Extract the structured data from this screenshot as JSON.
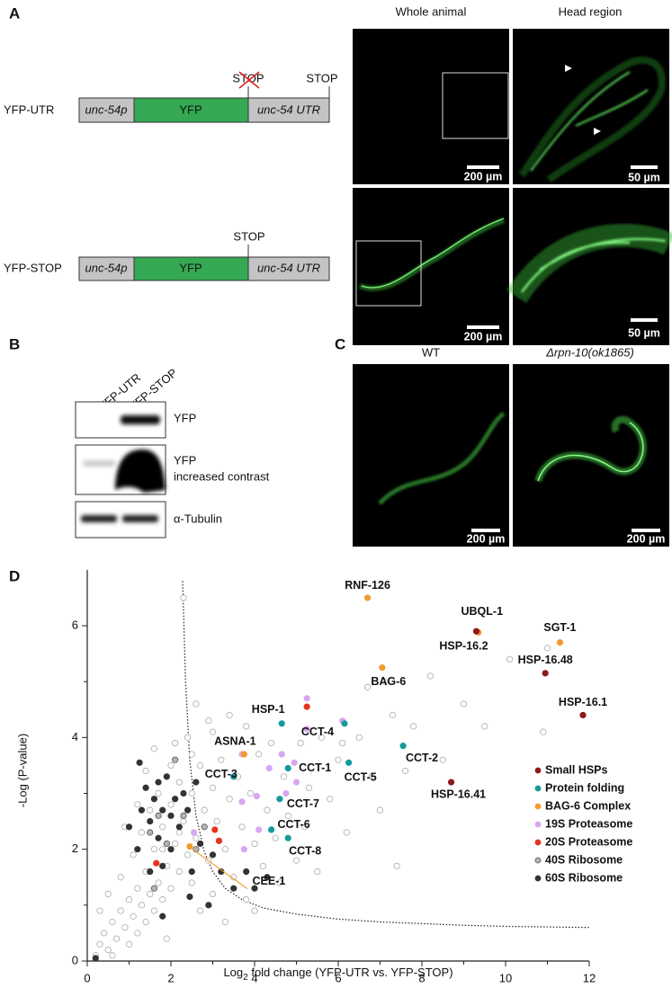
{
  "panel_labels": [
    "A",
    "B",
    "C",
    "D"
  ],
  "panel_a": {
    "column_headers": [
      "Whole animal",
      "Head region"
    ],
    "constructs": [
      {
        "name": "YFP-UTR",
        "segments": [
          "unc-54p",
          "YFP",
          "unc-54 UTR"
        ],
        "stops": [
          "STOP",
          "STOP"
        ]
      },
      {
        "name": "YFP-STOP",
        "segments": [
          "unc-54p",
          "YFP",
          "unc-54 UTR"
        ],
        "stops": [
          "STOP"
        ]
      }
    ],
    "scale_bars": [
      "200 µm",
      "50 µm",
      "200 µm",
      "50 µm"
    ]
  },
  "panel_b": {
    "lanes": [
      "YFP-UTR",
      "YFP-STOP"
    ],
    "blots": [
      [
        "YFP"
      ],
      [
        "YFP",
        "increased contrast"
      ],
      [
        "α-Tubulin"
      ]
    ]
  },
  "panel_c": {
    "headers": [
      "WT",
      "Δrpn-10(ok1865)"
    ],
    "scale_bars": [
      "200 µm",
      "200 µm"
    ]
  },
  "chart_data": {
    "type": "scatter",
    "xlabel_parts": [
      "Log",
      "2",
      " fold change (YFP-UTR vs. YFP-STOP)"
    ],
    "ylabel": "-Log (P-value)",
    "xlim": [
      0,
      12
    ],
    "ylim": [
      0,
      7
    ],
    "xticks": [
      0,
      2,
      4,
      6,
      8,
      10,
      12
    ],
    "yticks": [
      0,
      2,
      4,
      6
    ],
    "xminor": [
      1,
      3,
      5,
      7,
      9,
      11
    ],
    "yminor": [
      1,
      3,
      5
    ],
    "legend": "lower right",
    "threshold": {
      "x": [
        2.28,
        2.35,
        2.45,
        2.6,
        2.8,
        3.0,
        3.3,
        3.7,
        4.2,
        5,
        6,
        7,
        8,
        9,
        10,
        11,
        12
      ],
      "y": [
        6.8,
        5.0,
        3.6,
        2.6,
        1.95,
        1.6,
        1.3,
        1.1,
        0.95,
        0.84,
        0.75,
        0.7,
        0.67,
        0.64,
        0.62,
        0.61,
        0.6
      ]
    },
    "background": {
      "x": [
        0.2,
        0.3,
        0.4,
        0.5,
        0.6,
        0.7,
        0.8,
        0.9,
        1.0,
        1.0,
        1.1,
        1.2,
        1.2,
        1.3,
        1.4,
        1.4,
        1.5,
        1.6,
        1.6,
        1.7,
        1.8,
        1.8,
        1.9,
        2.0,
        2.0,
        2.1,
        2.2,
        2.2,
        2.3,
        2.4,
        2.5,
        2.5,
        2.6,
        2.7,
        2.8,
        2.9,
        3.0,
        3.0,
        3.1,
        3.2,
        3.3,
        3.4,
        3.5,
        3.6,
        3.7,
        3.8,
        3.9,
        4.0,
        4.1,
        4.2,
        4.3,
        4.4,
        4.5,
        4.6,
        4.7,
        4.8,
        5.0,
        5.1,
        5.2,
        5.3,
        5.5,
        5.6,
        5.8,
        6.0,
        6.2,
        6.5,
        6.7,
        6.8,
        7.0,
        7.1,
        7.3,
        7.4,
        7.6,
        7.8,
        8.2,
        8.5,
        9.0,
        9.5,
        10.1,
        10.9,
        11.0,
        0.5,
        0.8,
        1.1,
        1.3,
        1.5,
        1.7,
        1.4,
        1.6,
        2.1,
        2.4,
        2.6,
        2.3,
        2.9,
        3.4,
        3.8,
        1.2,
        0.9,
        2.0,
        0.3,
        0.6,
        1.9,
        2.7,
        3.3,
        4.0,
        6.1,
        3.0,
        2.5,
        1.8,
        2.2
      ],
      "y": [
        0.1,
        0.3,
        0.5,
        0.2,
        0.7,
        0.4,
        0.9,
        0.6,
        1.1,
        0.3,
        0.8,
        1.3,
        0.5,
        1.0,
        1.6,
        0.7,
        1.2,
        2.0,
        0.9,
        1.4,
        2.4,
        1.1,
        1.7,
        2.8,
        1.3,
        2.1,
        3.2,
        1.6,
        2.5,
        1.9,
        3.0,
        1.4,
        2.2,
        3.5,
        2.7,
        1.8,
        3.1,
        1.2,
        2.5,
        3.6,
        2.0,
        2.9,
        1.5,
        3.3,
        2.4,
        1.1,
        3.0,
        2.1,
        3.7,
        1.7,
        2.7,
        3.9,
        2.2,
        1.4,
        3.3,
        2.6,
        1.8,
        3.9,
        2.4,
        3.1,
        1.6,
        4.0,
        2.9,
        3.6,
        2.3,
        4.0,
        4.9,
        3.3,
        2.7,
        5.0,
        4.4,
        1.7,
        3.4,
        4.2,
        5.1,
        3.6,
        4.6,
        4.2,
        5.4,
        4.1,
        5.6,
        1.2,
        1.5,
        1.9,
        2.3,
        2.7,
        3.0,
        3.4,
        3.8,
        3.9,
        4.0,
        4.6,
        6.5,
        4.3,
        4.4,
        4.2,
        2.8,
        2.4,
        3.5,
        0.9,
        0.1,
        0.4,
        0.9,
        0.7,
        0.9,
        3.9,
        4.1,
        3.7,
        2.0,
        2.3
      ]
    },
    "series": [
      {
        "name": "Small HSPs",
        "color": "#8b1a1a",
        "x": [
          9.3,
          10.95,
          11.85,
          8.7
        ],
        "y": [
          5.9,
          5.15,
          4.4,
          3.2
        ],
        "labels": [
          "HSP-16.2",
          "HSP-16.48",
          "HSP-16.1",
          "HSP-16.41"
        ]
      },
      {
        "name": "Protein folding",
        "color": "#16999a",
        "x": [
          4.65,
          6.15,
          4.8,
          7.55,
          6.25,
          3.5,
          4.6,
          4.4,
          4.8
        ],
        "y": [
          4.25,
          4.25,
          3.45,
          3.85,
          3.55,
          3.3,
          2.9,
          2.35,
          2.2
        ],
        "labels": [
          "HSP-1",
          "CCT-4",
          "CCT-1",
          "CCT-2",
          "CCT-5",
          "CCT-3",
          "CCT-7",
          "CCT-6",
          "CCT-8"
        ]
      },
      {
        "name": "BAG-6 Complex",
        "color": "#f39a2e",
        "x": [
          6.7,
          9.35,
          11.3,
          7.05,
          3.75,
          2.45
        ],
        "y": [
          6.5,
          5.88,
          5.7,
          5.25,
          3.7,
          2.05
        ],
        "labels": [
          "RNF-126",
          "UBQL-1",
          "SGT-1",
          "BAG-6",
          "ASNA-1",
          "CEE-1"
        ]
      },
      {
        "name": "19S Proteasome",
        "color": "#d9a6f0",
        "x": [
          5.25,
          5.25,
          4.65,
          3.7,
          4.95,
          5.0,
          4.35,
          4.75,
          4.05,
          3.7,
          4.1,
          2.55,
          3.75,
          6.1
        ],
        "y": [
          4.7,
          4.15,
          3.7,
          3.7,
          3.55,
          3.2,
          3.45,
          3.0,
          2.95,
          2.85,
          2.35,
          2.3,
          2.0,
          4.3
        ]
      },
      {
        "name": "20S Proteasome",
        "color": "#e8321e",
        "x": [
          5.25,
          3.05,
          3.15,
          1.65
        ],
        "y": [
          4.55,
          2.35,
          2.15,
          1.75
        ]
      },
      {
        "name": "40S Ribosome",
        "color": "#b5b5b5",
        "edgecolor": "#555555",
        "x": [
          1.5,
          1.9,
          2.1,
          2.3,
          2.6,
          1.6,
          2.8,
          1.7
        ],
        "y": [
          2.3,
          2.1,
          3.6,
          2.6,
          2.0,
          1.3,
          2.4,
          2.6
        ]
      },
      {
        "name": "60S Ribosome",
        "color": "#333333",
        "x": [
          0.2,
          1.0,
          1.2,
          1.3,
          1.4,
          1.5,
          1.6,
          1.7,
          1.8,
          1.9,
          2.0,
          2.1,
          2.2,
          2.3,
          2.0,
          1.7,
          1.5,
          2.6,
          2.7,
          3.0,
          3.2,
          2.9,
          2.5,
          1.8,
          2.4,
          3.5,
          3.8,
          4.0,
          1.25,
          2.45,
          1.8,
          4.3
        ],
        "y": [
          0.05,
          2.4,
          2.0,
          2.7,
          3.1,
          2.5,
          2.9,
          3.2,
          2.7,
          3.3,
          2.6,
          2.9,
          2.4,
          3.0,
          2.0,
          2.2,
          1.6,
          3.2,
          2.1,
          1.9,
          1.6,
          1.0,
          1.6,
          1.7,
          2.7,
          1.3,
          1.6,
          1.3,
          3.55,
          1.15,
          0.8,
          1.5
        ]
      }
    ]
  }
}
